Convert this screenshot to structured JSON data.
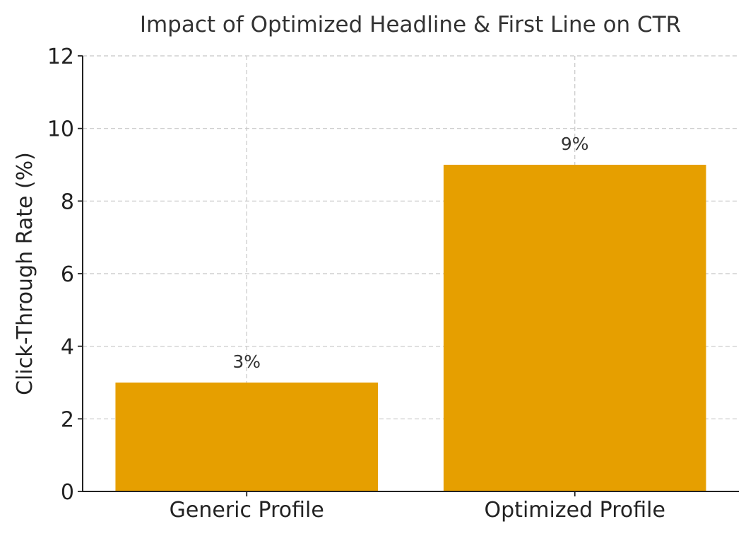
{
  "chart_data": {
    "type": "bar",
    "title": "Impact of Optimized Headline & First Line on CTR",
    "xlabel": "",
    "ylabel": "Click-Through Rate (%)",
    "categories": [
      "Generic Profile",
      "Optimized Profile"
    ],
    "values": [
      3,
      9
    ],
    "value_labels": [
      "3%",
      "9%"
    ],
    "ylim": [
      0,
      12
    ],
    "yticks": [
      0,
      2,
      4,
      6,
      8,
      10,
      12
    ],
    "grid": true,
    "bar_color": "#E69F00"
  }
}
